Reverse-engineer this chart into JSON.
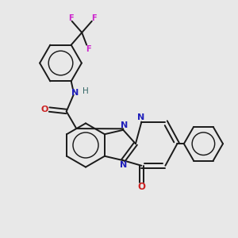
{
  "background_color": "#e8e8e8",
  "bond_color": "#1a1a1a",
  "nitrogen_color": "#2020bb",
  "oxygen_color": "#cc2222",
  "fluorine_color": "#cc22cc",
  "hydrogen_color": "#336666",
  "figsize": [
    3.0,
    3.0
  ],
  "dpi": 100,
  "xlim": [
    0,
    10
  ],
  "ylim": [
    0,
    10
  ]
}
